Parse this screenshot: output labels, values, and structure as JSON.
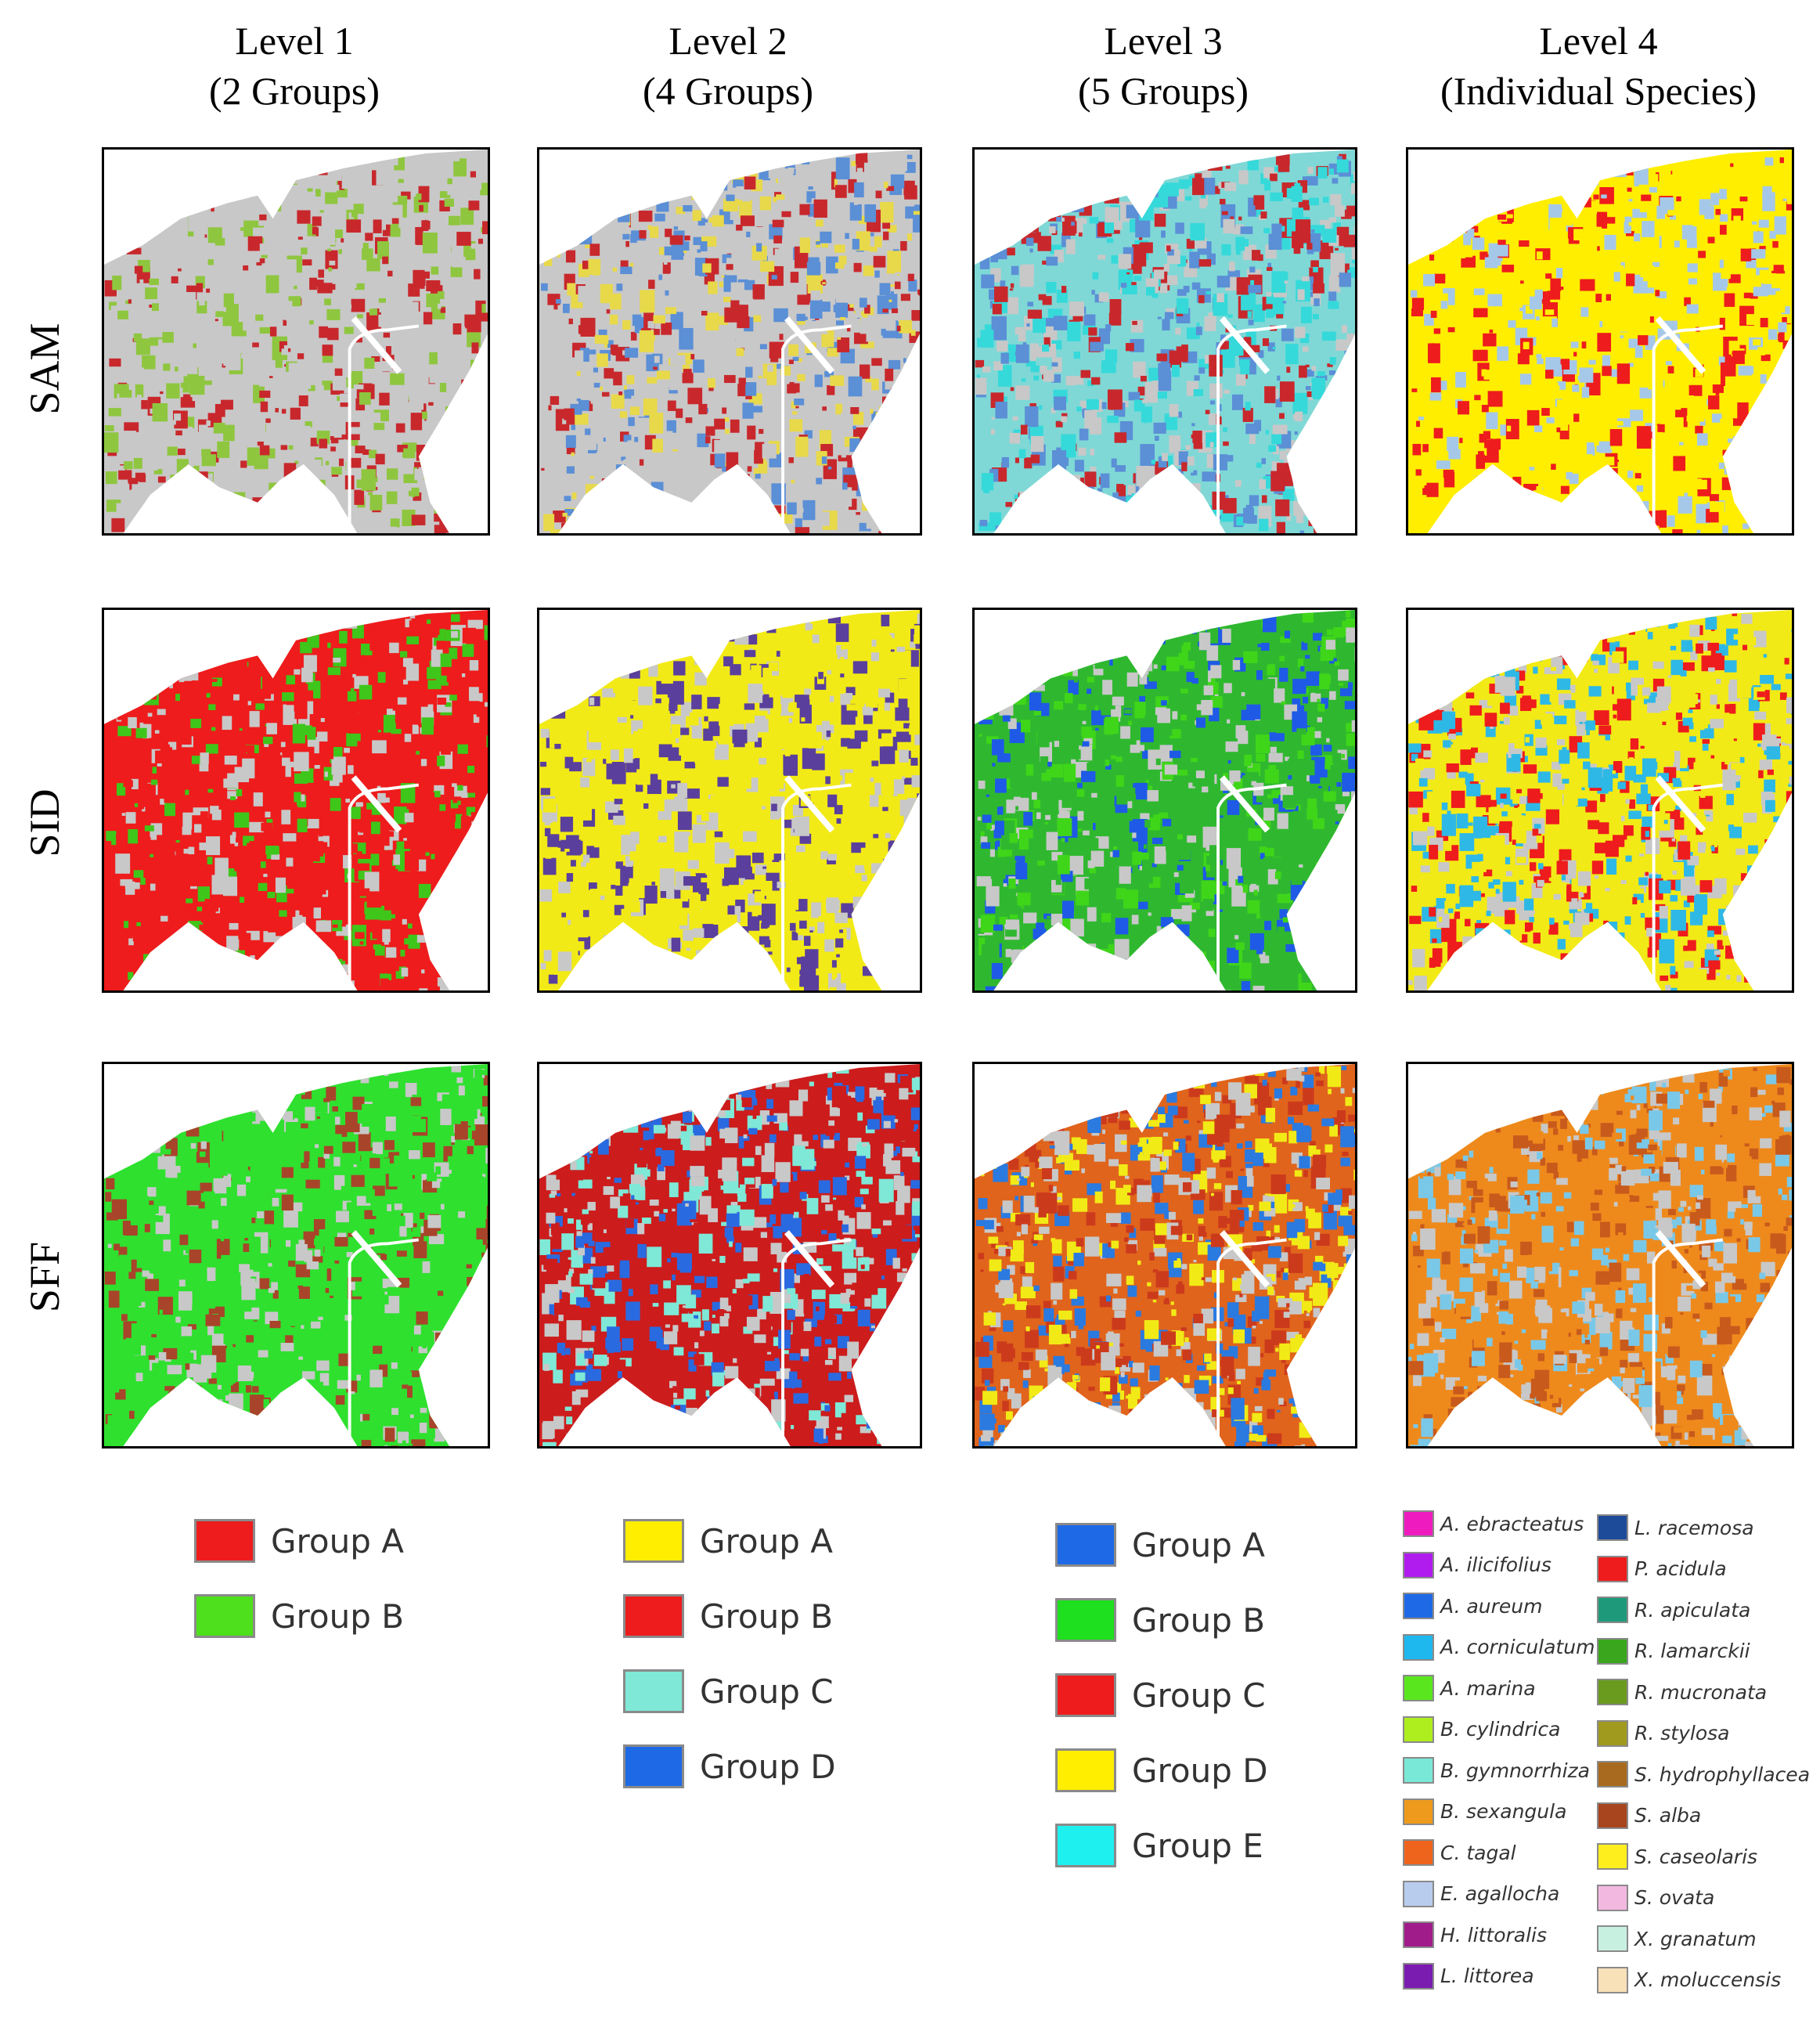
{
  "columns": [
    {
      "line1": "Level 1",
      "line2": "(2 Groups)"
    },
    {
      "line1": "Level 2",
      "line2": "(4 Groups)"
    },
    {
      "line1": "Level 3",
      "line2": "(5 Groups)"
    },
    {
      "line1": "Level 4",
      "line2": "(Individual Species)"
    }
  ],
  "rows": [
    "SAM",
    "SID",
    "SFF"
  ],
  "panels": [
    [
      {
        "bg": "#c8c8c8",
        "mix": [
          "#c8c8c8",
          "#c8282c",
          "#c8c8c8",
          "#8fc63f"
        ]
      },
      {
        "bg": "#c8c8c8",
        "mix": [
          "#c8282c",
          "#5b8fd6",
          "#c8c8c8",
          "#e8d94a"
        ]
      },
      {
        "bg": "#7fd8d6",
        "mix": [
          "#c8282c",
          "#36d9d9",
          "#5b8fd6",
          "#c8c8c8"
        ]
      },
      {
        "bg": "#ffee00",
        "mix": [
          "#ee1c1c",
          "#ffee00",
          "#ffee00",
          "#a6c8e8"
        ]
      }
    ],
    [
      {
        "bg": "#ee1c1c",
        "mix": [
          "#ee1c1c",
          "#3fc61a",
          "#ee1c1c",
          "#c8c8c8"
        ]
      },
      {
        "bg": "#f2ea16",
        "mix": [
          "#f2ea16",
          "#5a3f9c",
          "#c8c8c8",
          "#f2ea16"
        ]
      },
      {
        "bg": "#2fb82f",
        "mix": [
          "#1e5ae6",
          "#2fb82f",
          "#3fd61a",
          "#c8c8c8"
        ]
      },
      {
        "bg": "#f2ea16",
        "mix": [
          "#ee1c1c",
          "#2eb8e6",
          "#f2ea16",
          "#c8c8c8"
        ]
      }
    ],
    [
      {
        "bg": "#2fe02f",
        "mix": [
          "#2fe02f",
          "#a8442a",
          "#2fe02f",
          "#c8c8c8"
        ]
      },
      {
        "bg": "#cc1c1c",
        "mix": [
          "#cc1c1c",
          "#2a6ae0",
          "#7fe8d6",
          "#c8c8c8"
        ]
      },
      {
        "bg": "#e0641c",
        "mix": [
          "#f2ea16",
          "#2a7ae0",
          "#cc3a1c",
          "#c8c8c8"
        ]
      },
      {
        "bg": "#ee8a1c",
        "mix": [
          "#ee8a1c",
          "#c85a1c",
          "#7ac8e8",
          "#c8c8c8"
        ]
      }
    ]
  ],
  "legends": {
    "level1": [
      {
        "label": "Group A",
        "color": "#ee1c1c"
      },
      {
        "label": "Group B",
        "color": "#4ee01c"
      }
    ],
    "level2": [
      {
        "label": "Group A",
        "color": "#ffee00"
      },
      {
        "label": "Group B",
        "color": "#ee1c1c"
      },
      {
        "label": "Group C",
        "color": "#7fe8d6"
      },
      {
        "label": "Group D",
        "color": "#1e6ae6"
      }
    ],
    "level3": [
      {
        "label": "Group A",
        "color": "#1e6ae6"
      },
      {
        "label": "Group B",
        "color": "#1ee01e"
      },
      {
        "label": "Group C",
        "color": "#ee1c1c"
      },
      {
        "label": "Group D",
        "color": "#ffee00"
      },
      {
        "label": "Group E",
        "color": "#1ef0f0"
      }
    ],
    "level4_left": [
      {
        "label": "A. ebracteatus",
        "color": "#ee1cbe"
      },
      {
        "label": "A. ilicifolius",
        "color": "#b01cee"
      },
      {
        "label": "A. aureum",
        "color": "#1e6ae6"
      },
      {
        "label": "A. corniculatum",
        "color": "#1eb8ee"
      },
      {
        "label": "A. marina",
        "color": "#5ae61e"
      },
      {
        "label": "B. cylindrica",
        "color": "#aeee1e"
      },
      {
        "label": "B. gymnorrhiza",
        "color": "#7ae8d6"
      },
      {
        "label": "B. sexangula",
        "color": "#ee9a1c"
      },
      {
        "label": "C. tagal",
        "color": "#ee641c"
      },
      {
        "label": "E. agallocha",
        "color": "#b8ccee"
      },
      {
        "label": "H. littoralis",
        "color": "#a01c8a"
      },
      {
        "label": "L. littorea",
        "color": "#7a1cb0"
      }
    ],
    "level4_right": [
      {
        "label": "L. racemosa",
        "color": "#1e4a9a"
      },
      {
        "label": "P. acidula",
        "color": "#ee1c1c"
      },
      {
        "label": "R. apiculata",
        "color": "#1e9a7a"
      },
      {
        "label": "R. lamarckii",
        "color": "#3aa61e"
      },
      {
        "label": "R. mucronata",
        "color": "#6a9a1e"
      },
      {
        "label": "R. stylosa",
        "color": "#a09a1e"
      },
      {
        "label": "S. hydrophyllacea",
        "color": "#a86a1e"
      },
      {
        "label": "S. alba",
        "color": "#a8441e"
      },
      {
        "label": "S. caseolaris",
        "color": "#ffee1e"
      },
      {
        "label": "S. ovata",
        "color": "#f2b8e0"
      },
      {
        "label": "X. granatum",
        "color": "#c8f0e0"
      },
      {
        "label": "X. moluccensis",
        "color": "#f8e0b8"
      }
    ]
  }
}
